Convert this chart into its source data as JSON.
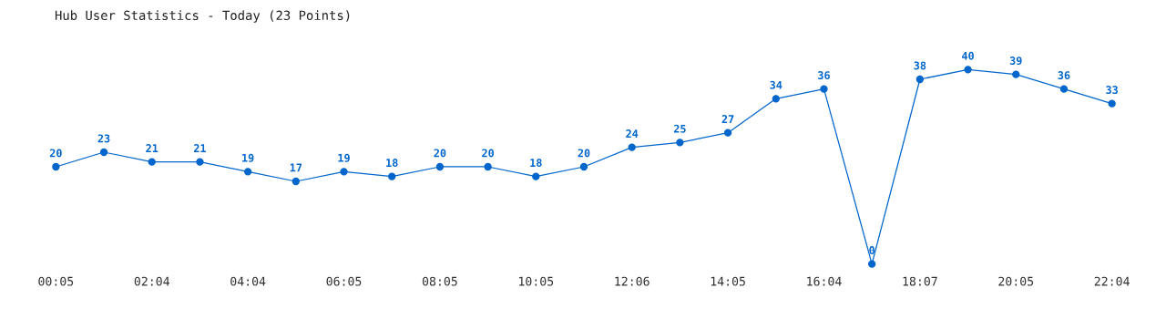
{
  "chart_data": {
    "type": "line",
    "title": "Hub User Statistics - Today (23 Points)",
    "categories": [
      "00:05",
      null,
      "02:04",
      null,
      "04:04",
      null,
      "06:05",
      null,
      "08:05",
      null,
      "10:05",
      null,
      "12:06",
      null,
      "14:05",
      null,
      "16:04",
      null,
      "18:07",
      null,
      "20:05",
      null,
      "22:04"
    ],
    "series": [
      {
        "color": "#0066cc",
        "values": [
          20,
          23,
          21,
          21,
          19,
          17,
          19,
          18,
          20,
          20,
          18,
          20,
          24,
          25,
          27,
          34,
          36,
          0,
          38,
          40,
          39,
          36,
          33
        ]
      }
    ],
    "data_labels": true,
    "marker": "circle",
    "line_style": "solid",
    "grid": false,
    "legend": false
  }
}
